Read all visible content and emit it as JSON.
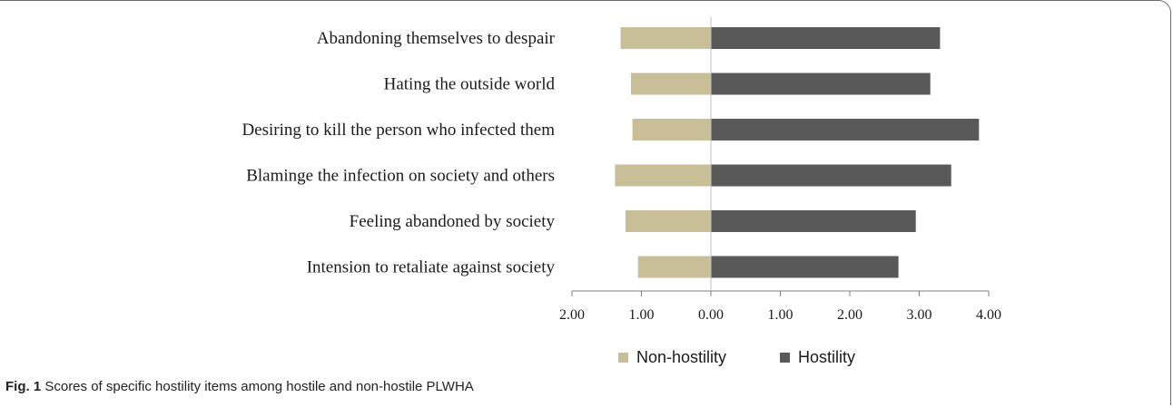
{
  "chart_data": {
    "type": "bar",
    "orientation": "horizontal-diverging",
    "categories": [
      "Abandoning themselves to despair",
      "Hating the outside world",
      "Desiring to kill the person who infected them",
      "Blaminge the infection on society and others",
      "Feeling abandoned by society",
      "Intension to retaliate against society"
    ],
    "series": [
      {
        "name": "Non-hostility",
        "values": [
          1.3,
          1.15,
          1.13,
          1.38,
          1.23,
          1.05
        ],
        "color": "#c8bf98",
        "direction": "left"
      },
      {
        "name": "Hostility",
        "values": [
          3.3,
          3.16,
          3.86,
          3.46,
          2.95,
          2.7
        ],
        "color": "#595959",
        "direction": "right"
      }
    ],
    "x_tick_labels": [
      "2.00",
      "1.00",
      "0.00",
      "1.00",
      "2.00",
      "3.00",
      "4.00"
    ],
    "xlim": [
      -2,
      4
    ],
    "legend_position": "bottom-center",
    "grid": false
  },
  "caption": {
    "label": "Fig. 1",
    "text": "Scores of specific hostility items among hostile and non-hostile PLWHA"
  }
}
